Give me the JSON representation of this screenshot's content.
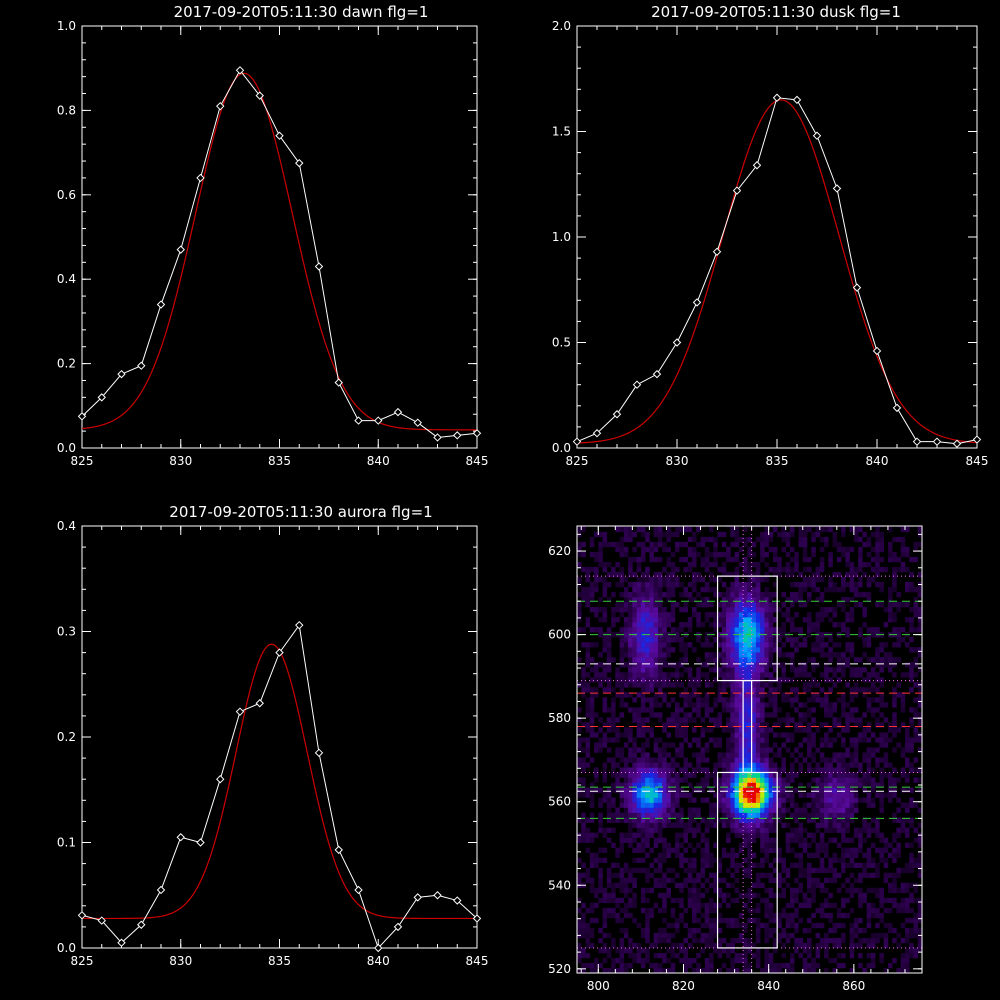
{
  "chart_data": [
    {
      "type": "line",
      "title": "2017-09-20T05:11:30 dawn flg=1",
      "xlim": [
        825,
        845
      ],
      "ylim": [
        0,
        1.0
      ],
      "xticks": [
        "825",
        "830",
        "835",
        "840",
        "845"
      ],
      "yticks": [
        "0.0",
        "0.2",
        "0.4",
        "0.6",
        "0.8",
        "1.0"
      ],
      "x": [
        825,
        826,
        827,
        828,
        829,
        830,
        831,
        832,
        833,
        834,
        835,
        836,
        837,
        838,
        839,
        840,
        841,
        842,
        843,
        844,
        845
      ],
      "series": [
        {
          "values": [
            0.075,
            0.12,
            0.175,
            0.195,
            0.34,
            0.47,
            0.64,
            0.81,
            0.895,
            0.835,
            0.74,
            0.675,
            0.43,
            0.155,
            0.065,
            0.065,
            0.085,
            0.06,
            0.025,
            0.03,
            0.035
          ],
          "color": "#ffffff",
          "markers": "diamond"
        }
      ],
      "fit": {
        "kind": "gaussian",
        "amplitude": 0.845,
        "center": 833.2,
        "sigma": 2.45,
        "offset": 0.043,
        "color": "#cc0000"
      }
    },
    {
      "type": "line",
      "title": "2017-09-20T05:11:30 dusk flg=1",
      "xlim": [
        825,
        845
      ],
      "ylim": [
        0,
        2.0
      ],
      "xticks": [
        "825",
        "830",
        "835",
        "840",
        "845"
      ],
      "yticks": [
        "0.0",
        "0.5",
        "1.0",
        "1.5",
        "2.0"
      ],
      "x": [
        825,
        826,
        827,
        828,
        829,
        830,
        831,
        832,
        833,
        834,
        835,
        836,
        837,
        838,
        839,
        840,
        841,
        842,
        843,
        844,
        845
      ],
      "series": [
        {
          "values": [
            0.03,
            0.07,
            0.16,
            0.3,
            0.35,
            0.5,
            0.69,
            0.93,
            1.22,
            1.34,
            1.66,
            1.65,
            1.48,
            1.23,
            0.76,
            0.46,
            0.19,
            0.03,
            0.03,
            0.02,
            0.04
          ],
          "color": "#ffffff",
          "markers": "diamond"
        }
      ],
      "fit": {
        "kind": "gaussian",
        "amplitude": 1.63,
        "center": 835.2,
        "sigma": 2.9,
        "offset": 0.02,
        "color": "#cc0000"
      }
    },
    {
      "type": "line",
      "title": "2017-09-20T05:11:30 aurora flg=1",
      "xlim": [
        825,
        845
      ],
      "ylim": [
        0,
        0.4
      ],
      "xticks": [
        "825",
        "830",
        "835",
        "840",
        "845"
      ],
      "yticks": [
        "0.0",
        "0.1",
        "0.2",
        "0.3",
        "0.4"
      ],
      "x": [
        825,
        826,
        827,
        828,
        829,
        830,
        831,
        832,
        833,
        834,
        835,
        836,
        837,
        838,
        839,
        840,
        841,
        842,
        843,
        844,
        845
      ],
      "series": [
        {
          "values": [
            0.031,
            0.026,
            0.005,
            0.022,
            0.055,
            0.105,
            0.1,
            0.16,
            0.224,
            0.232,
            0.28,
            0.306,
            0.185,
            0.093,
            0.055,
            0.0,
            0.02,
            0.048,
            0.05,
            0.045,
            0.028
          ],
          "color": "#ffffff",
          "markers": "diamond"
        }
      ],
      "fit": {
        "kind": "gaussian",
        "amplitude": 0.26,
        "center": 834.6,
        "sigma": 1.8,
        "offset": 0.028,
        "color": "#cc0000"
      }
    },
    {
      "type": "heatmap",
      "title": "",
      "xlim": [
        795,
        876
      ],
      "ylim": [
        519,
        626
      ],
      "xticks": [
        "800",
        "820",
        "840",
        "860"
      ],
      "yticks": [
        "520",
        "540",
        "560",
        "580",
        "600",
        "620"
      ],
      "colormap": "blue-purple-green-yellow-red",
      "blobs": [
        {
          "x": 812,
          "y": 562,
          "amplitude": 0.55,
          "sx": 3,
          "sy": 4
        },
        {
          "x": 836,
          "y": 562,
          "amplitude": 1.0,
          "sx": 3.2,
          "sy": 4
        },
        {
          "x": 835,
          "y": 600,
          "amplitude": 0.55,
          "sx": 3,
          "sy": 6
        },
        {
          "x": 811,
          "y": 600,
          "amplitude": 0.3,
          "sx": 2.5,
          "sy": 7
        },
        {
          "x": 835,
          "y": 578,
          "amplitude": 0.3,
          "sx": 2,
          "sy": 9
        },
        {
          "x": 856,
          "y": 561,
          "amplitude": 0.2,
          "sx": 3,
          "sy": 4
        }
      ],
      "rectangles": [
        {
          "x0": 828,
          "x1": 842,
          "y0": 589,
          "y1": 614,
          "color": "#ffffff"
        },
        {
          "x0": 828,
          "x1": 842,
          "y0": 525,
          "y1": 567,
          "color": "#ffffff"
        },
        {
          "x0": 834,
          "x1": 836,
          "y0": 567,
          "y1": 589,
          "color": "#ffffff"
        }
      ],
      "hlines": [
        {
          "y": 614,
          "style": "dotted",
          "color": "#ff66ff"
        },
        {
          "y": 608,
          "style": "dashed",
          "color": "#33cc33"
        },
        {
          "y": 600,
          "style": "dashed",
          "color": "#33cc33"
        },
        {
          "y": 593,
          "style": "dashed",
          "color": "#ffffff"
        },
        {
          "y": 589,
          "style": "dotted",
          "color": "#ff66ff"
        },
        {
          "y": 586,
          "style": "dashed",
          "color": "#ff3333"
        },
        {
          "y": 578,
          "style": "dashed",
          "color": "#ff3333"
        },
        {
          "y": 567,
          "style": "dotted",
          "color": "#ff66ff"
        },
        {
          "y": 563.5,
          "style": "dashed",
          "color": "#33cc33"
        },
        {
          "y": 562.5,
          "style": "dashed",
          "color": "#ffffff"
        },
        {
          "y": 556,
          "style": "dashed",
          "color": "#33cc33"
        },
        {
          "y": 525,
          "style": "dotted",
          "color": "#ff66ff"
        }
      ],
      "vlines": [
        {
          "x": 834,
          "style": "dotted",
          "color": "#ff66ff"
        },
        {
          "x": 836,
          "style": "dotted",
          "color": "#ff66ff"
        }
      ]
    }
  ]
}
